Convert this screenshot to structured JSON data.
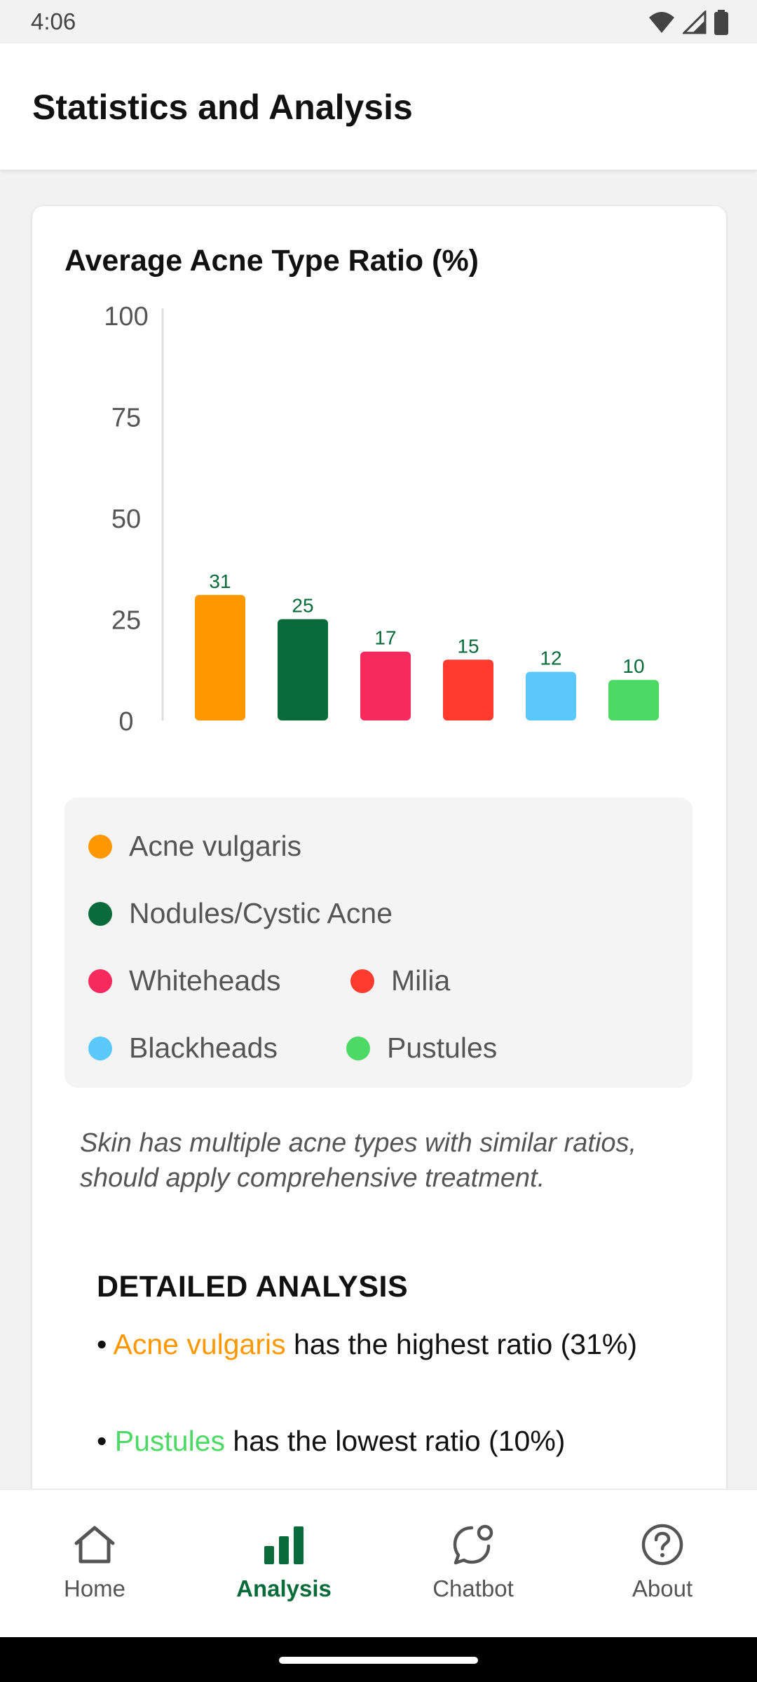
{
  "status_bar": {
    "time": "4:06",
    "icons": [
      "wifi-icon",
      "signal-icon",
      "battery-icon"
    ]
  },
  "header": {
    "title": "Statistics and Analysis"
  },
  "card": {
    "title": "Average Acne Type Ratio (%)",
    "note": "Skin has multiple acne types with similar ratios, should apply comprehensive treatment.",
    "analysis": {
      "heading": "DETAILED ANALYSIS",
      "line1": {
        "bullet": "•",
        "highlight": "Acne vulgaris",
        "rest": " has the highest ratio (31%)"
      },
      "line2": {
        "bullet": "•",
        "highlight": "Pustules",
        "rest": " has the lowest ratio (10%)"
      }
    }
  },
  "chart_data": {
    "type": "bar",
    "title": "Average Acne Type Ratio (%)",
    "categories": [
      "Acne vulgaris",
      "Nodules/Cystic Acne",
      "Whiteheads",
      "Milia",
      "Blackheads",
      "Pustules"
    ],
    "values": [
      31,
      25,
      17,
      15,
      12,
      10
    ],
    "colors": [
      "#ff9800",
      "#0a6b3a",
      "#f72a5e",
      "#ff3b30",
      "#5ac8fa",
      "#4cd964"
    ],
    "ylim": [
      0,
      100
    ],
    "yticks": [
      0,
      25,
      50,
      75,
      100
    ],
    "value_label_color": "#0a6b3a",
    "grid": false,
    "legend_position": "below"
  },
  "legend": [
    {
      "label": "Acne vulgaris",
      "color": "#ff9800"
    },
    {
      "label": "Nodules/Cystic Acne",
      "color": "#0a6b3a"
    },
    {
      "label": "Whiteheads",
      "color": "#f72a5e"
    },
    {
      "label": "Milia",
      "color": "#ff3b30"
    },
    {
      "label": "Blackheads",
      "color": "#5ac8fa"
    },
    {
      "label": "Pustules",
      "color": "#4cd964"
    }
  ],
  "bottom_nav": {
    "items": [
      {
        "label": "Home",
        "icon": "home-icon",
        "active": false
      },
      {
        "label": "Analysis",
        "icon": "bar-chart-icon",
        "active": true
      },
      {
        "label": "Chatbot",
        "icon": "chat-bubble-icon",
        "active": false
      },
      {
        "label": "About",
        "icon": "help-circle-icon",
        "active": false
      }
    ]
  },
  "theme": {
    "accent": "#0a6b3a",
    "inactive": "#555555"
  }
}
